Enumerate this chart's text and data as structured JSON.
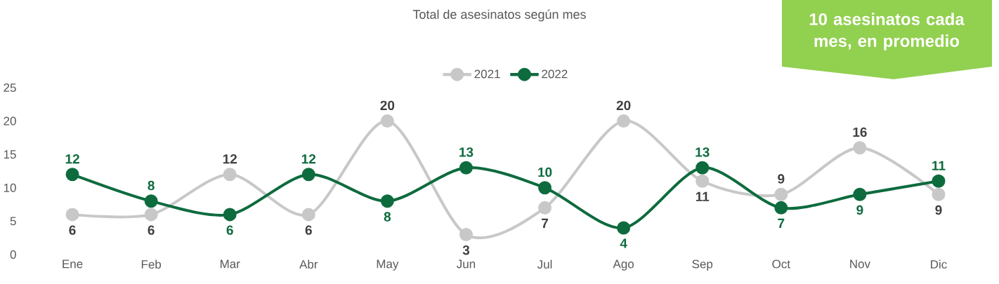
{
  "chart_data": {
    "type": "line",
    "title": "Total de asesinatos según mes",
    "categories": [
      "Ene",
      "Feb",
      "Mar",
      "Abr",
      "May",
      "Jun",
      "Jul",
      "Ago",
      "Sep",
      "Oct",
      "Nov",
      "Dic"
    ],
    "series": [
      {
        "name": "2021",
        "color": "#c8c8c8",
        "values": [
          6,
          6,
          12,
          6,
          20,
          3,
          7,
          20,
          11,
          9,
          16,
          9
        ]
      },
      {
        "name": "2022",
        "color": "#0e6b3e",
        "values": [
          12,
          8,
          6,
          12,
          8,
          13,
          10,
          4,
          13,
          7,
          9,
          11
        ]
      }
    ],
    "ylim": [
      0,
      25
    ],
    "yticks": [
      0,
      5,
      10,
      15,
      20,
      25
    ],
    "legend": "top",
    "marker": "circle",
    "line_style": "solid",
    "data_labels": true,
    "annotations": [
      "10 asesinatos cada mes, en promedio"
    ]
  }
}
